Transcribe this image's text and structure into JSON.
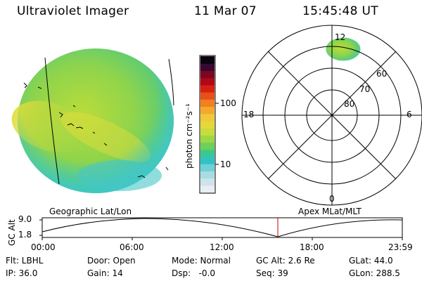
{
  "header": {
    "instrument": "Ultraviolet Imager",
    "date": "11 Mar 07",
    "time": "15:45:48 UT"
  },
  "colorbar": {
    "unit_label": "photon cm⁻²s⁻¹",
    "ticks": [
      "100",
      "10"
    ],
    "colors": [
      "#e8eef2",
      "#cfe4ea",
      "#a8dce4",
      "#70d0d8",
      "#2fc4c4",
      "#3cc88c",
      "#6cd05a",
      "#9cd846",
      "#c8dc3c",
      "#e4d83a",
      "#f0c838",
      "#f4a82e",
      "#f08020",
      "#e85018",
      "#d82010",
      "#b00818",
      "#7a0820",
      "#3a0830",
      "#0a0410"
    ]
  },
  "polar": {
    "lat_labels": [
      "60",
      "70",
      "80"
    ],
    "mlt_labels": [
      "12",
      "18",
      "6",
      "0"
    ]
  },
  "labels": {
    "left_map": "Geographic Lat/Lon",
    "right_map": "Apex MLat/MLT"
  },
  "altitude_plot": {
    "axis_label": "GC Alt",
    "y_ticks": [
      "9.0",
      "1.8"
    ],
    "x_ticks": [
      "00:00",
      "06:00",
      "12:00",
      "18:00",
      "23:59"
    ]
  },
  "footer": {
    "row1": [
      "Flt: LBHL",
      "Door: Open",
      "Mode: Normal",
      "GC Alt: 2.6 Re",
      "GLat: 44.0"
    ],
    "row2": [
      "IP: 36.0",
      "Gain: 14",
      "Dsp:   -0.0",
      "Seq: 39",
      "GLon: 288.5"
    ]
  }
}
